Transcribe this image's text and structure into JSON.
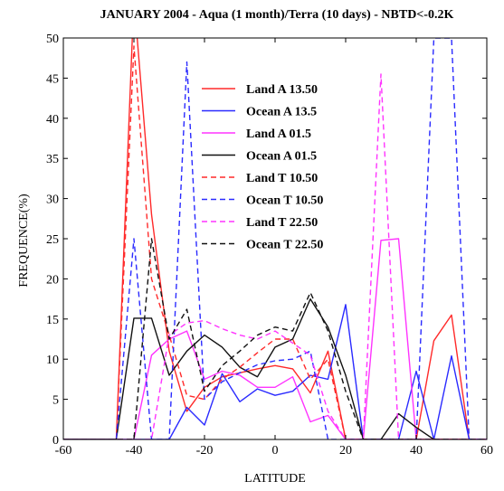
{
  "chart_data": {
    "type": "line",
    "title": "JANUARY 2004 -  Aqua (1 month)/Terra (10 days) - NBTD<-0.2K",
    "xlabel": "LATITUDE",
    "ylabel": "FREQUENCE(%)",
    "xlim": [
      -60,
      60
    ],
    "ylim": [
      0,
      50
    ],
    "xticks": [
      -60,
      -40,
      -20,
      0,
      20,
      40,
      60
    ],
    "yticks": [
      0,
      5,
      10,
      15,
      20,
      25,
      30,
      35,
      40,
      45,
      50
    ],
    "grid": false,
    "legend_position": "top-center",
    "x": [
      -60,
      -55,
      -50,
      -45,
      -40,
      -35,
      -30,
      -25,
      -20,
      -15,
      -10,
      -5,
      0,
      5,
      10,
      15,
      20,
      25,
      30,
      35,
      40,
      45,
      50,
      55,
      60
    ],
    "series": [
      {
        "name": "Land A 13.50",
        "color": "#ff2a2a",
        "dash": "solid",
        "values": [
          0,
          0,
          0,
          0,
          55,
          28,
          11,
          3.5,
          6.5,
          7.8,
          8.3,
          8.8,
          9.2,
          8.8,
          5.8,
          11,
          0,
          0,
          0,
          0,
          0,
          12.3,
          15.5,
          0,
          0
        ]
      },
      {
        "name": "Ocean A 13.5",
        "color": "#2a2aff",
        "dash": "solid",
        "values": [
          0,
          0,
          0,
          0,
          0,
          0,
          0,
          4,
          1.8,
          8.2,
          4.7,
          6.3,
          5.5,
          6,
          8,
          7.5,
          16.8,
          0,
          0,
          0,
          8.5,
          0,
          10.4,
          0,
          0
        ]
      },
      {
        "name": "Land A 01.5",
        "color": "#ff33ff",
        "dash": "solid",
        "values": [
          0,
          0,
          0,
          0,
          0,
          10.5,
          12.5,
          13.5,
          7.5,
          8.5,
          8,
          6.5,
          6.5,
          7.8,
          2.2,
          3,
          0,
          0,
          24.8,
          25,
          0,
          0,
          0,
          0,
          0
        ]
      },
      {
        "name": "Ocean A 01.5",
        "color": "#111111",
        "dash": "solid",
        "values": [
          0,
          0,
          0,
          0,
          15.1,
          15.1,
          8,
          11,
          13,
          11.5,
          9,
          7.8,
          11.5,
          12.5,
          17.5,
          14,
          8,
          0,
          0,
          3.2,
          1.5,
          0,
          0,
          0,
          0
        ]
      },
      {
        "name": "Land T 10.50",
        "color": "#ff2a2a",
        "dash": "dashed",
        "values": [
          0,
          0,
          0,
          0,
          49,
          20,
          13,
          5.5,
          5,
          7.5,
          9,
          10.8,
          12.5,
          12.5,
          7.5,
          10,
          0,
          0,
          0,
          0,
          0,
          0,
          0,
          0,
          0
        ]
      },
      {
        "name": "Ocean T 10.50",
        "color": "#2a2aff",
        "dash": "dashed",
        "values": [
          0,
          0,
          0,
          0,
          25,
          0,
          0,
          47,
          5,
          7.2,
          8.3,
          9.3,
          9.8,
          10,
          11,
          0,
          0,
          0,
          0,
          0,
          0,
          50,
          50,
          0,
          0
        ]
      },
      {
        "name": "Land T 22.50",
        "color": "#ff33ff",
        "dash": "dashed",
        "values": [
          0,
          0,
          0,
          0,
          0,
          0,
          13,
          14.5,
          14.8,
          13.8,
          13,
          12.5,
          13.5,
          12,
          10.5,
          3.5,
          0,
          0,
          45.5,
          0,
          0,
          0,
          0,
          0,
          0
        ]
      },
      {
        "name": "Ocean T 22.50",
        "color": "#111111",
        "dash": "dashed",
        "values": [
          0,
          0,
          0,
          0,
          0,
          25,
          12.5,
          16.2,
          6,
          9.2,
          11,
          13,
          14,
          13.5,
          18.3,
          13.5,
          6,
          0,
          0,
          0,
          0,
          0,
          0,
          0,
          0
        ]
      }
    ]
  }
}
